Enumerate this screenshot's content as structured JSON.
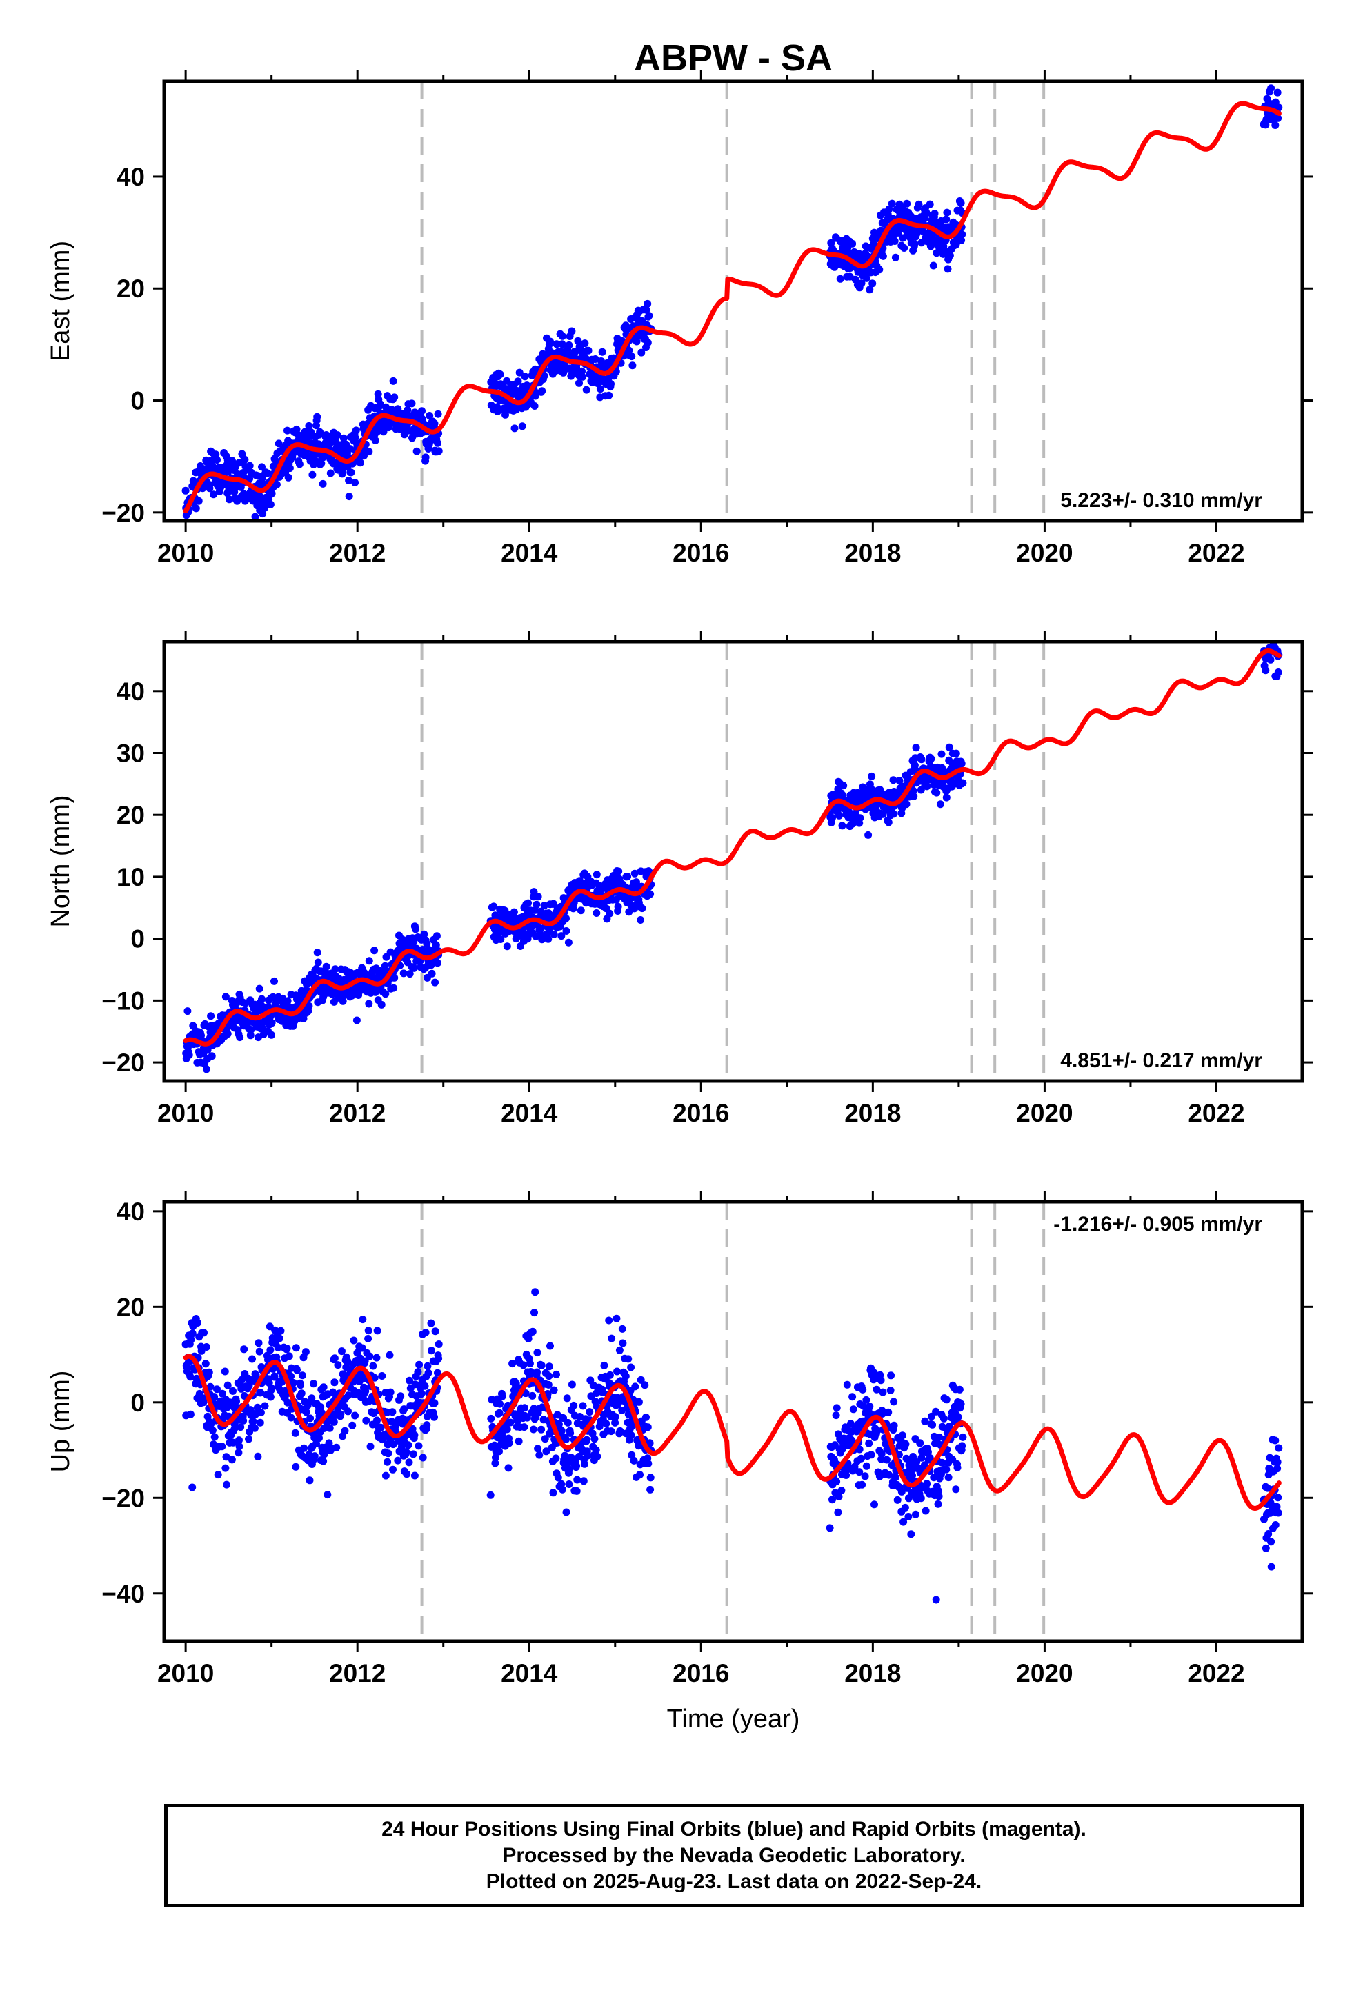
{
  "title": "ABPW - SA",
  "colors": {
    "data": "#0000ff",
    "model": "#ff0000",
    "offset_line": "#bbbbbb",
    "frame": "#000000"
  },
  "chart_data": {
    "type": "scatter",
    "xlabel": "Time (year)",
    "xlim": [
      2009.75,
      2023.0
    ],
    "x_ticks": [
      2010,
      2012,
      2014,
      2016,
      2018,
      2020,
      2022
    ],
    "x_tick_labels": [
      "2010",
      "2012",
      "2014",
      "2016",
      "2018",
      "2020",
      "2022"
    ],
    "offset_lines": [
      2012.75,
      2016.3,
      2019.15,
      2019.42,
      2019.99
    ],
    "data_segments": [
      [
        2010.0,
        2012.95
      ],
      [
        2013.55,
        2015.42
      ],
      [
        2017.5,
        2019.05
      ],
      [
        2022.55,
        2022.73
      ]
    ],
    "panels": [
      {
        "name": "east",
        "ylabel": "East (mm)",
        "ylim": [
          -21.5,
          57
        ],
        "y_ticks": [
          -20,
          0,
          20,
          40
        ],
        "y_tick_labels": [
          "−20",
          "0",
          "20",
          "40"
        ],
        "rate": "5.223+/- 0.310 mm/yr",
        "rate_position": "bottom-right",
        "model": {
          "base": -17.5,
          "slope": 5.223,
          "annual": 2.7,
          "annual_phase": 2010.35,
          "semiannual": 0.8,
          "semiannual_phase": 2010.2,
          "offsets": [
            {
              "t": 2016.3,
              "size": 3.5
            }
          ]
        },
        "scatter_sd": 2.0
      },
      {
        "name": "north",
        "ylabel": "North (mm)",
        "ylim": [
          -23,
          48
        ],
        "y_ticks": [
          -20,
          -10,
          0,
          10,
          20,
          30,
          40
        ],
        "y_tick_labels": [
          "−20",
          "−10",
          "0",
          "10",
          "20",
          "30",
          "40"
        ],
        "rate": "4.851+/- 0.217 mm/yr",
        "rate_position": "bottom-right",
        "model": {
          "base": -16.5,
          "slope": 4.851,
          "annual": 1.2,
          "annual_phase": 2010.65,
          "semiannual": 0.9,
          "semiannual_phase": 2010.55,
          "offsets": []
        },
        "scatter_sd": 1.6
      },
      {
        "name": "up",
        "ylabel": "Up (mm)",
        "ylim": [
          -50,
          42
        ],
        "y_ticks": [
          -40,
          -20,
          0,
          20,
          40
        ],
        "y_tick_labels": [
          "−40",
          "−20",
          "0",
          "20",
          "40"
        ],
        "rate": "-1.216+/- 0.905 mm/yr",
        "rate_position": "top-right",
        "model": {
          "base": 2.5,
          "slope": -1.216,
          "annual": 6.5,
          "annual_phase": 2010.0,
          "semiannual": 1.2,
          "semiannual_phase": 2010.1,
          "offsets": [
            {
              "t": 2016.3,
              "size": -3.0
            }
          ]
        },
        "scatter_sd": 5.5
      }
    ]
  },
  "footer": {
    "line1": "24 Hour Positions Using Final Orbits (blue) and Rapid Orbits (magenta).",
    "line2": "Processed by the Nevada Geodetic Laboratory.",
    "line3": "Plotted on 2025-Aug-23. Last data on 2022-Sep-24."
  }
}
